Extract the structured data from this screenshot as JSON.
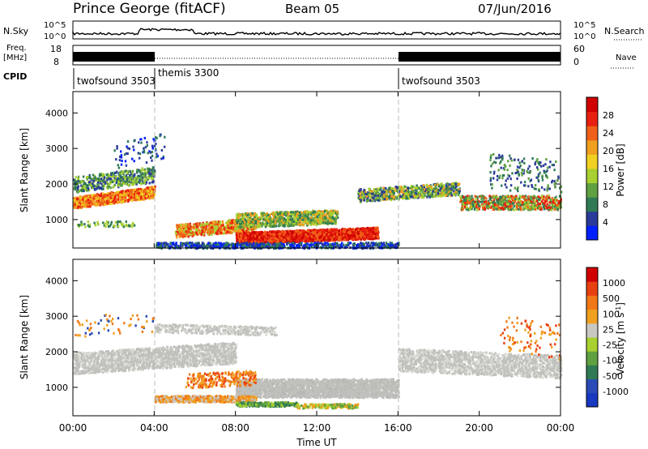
{
  "header": {
    "station": "Prince George (fitACF)",
    "beam": "Beam 05",
    "date": "07/Jun/2016"
  },
  "aux": {
    "nsky_label": "N.Sky",
    "nsearch_label": "N.Search",
    "nsky_ticks": [
      "10^5",
      "10^0"
    ],
    "nsearch_ticks": [
      "10^5",
      "10^0"
    ],
    "freq_label_1": "Freq.",
    "freq_label_2": "[MHz]",
    "freq_ticks": [
      "18",
      "8"
    ],
    "nave_label": "Nave",
    "nave_ticks": [
      "60",
      "0"
    ],
    "cpid_label": "CPID",
    "cpid_segments": [
      {
        "label": "twofsound 3503",
        "start_hour": 0
      },
      {
        "label": "themis 3300",
        "start_hour": 4
      },
      {
        "label": "twofsound 3503",
        "start_hour": 16
      }
    ]
  },
  "chart_data": [
    {
      "type": "heatmap",
      "name": "power",
      "ylabel": "Slant Range [km]",
      "ylim": [
        200,
        4600
      ],
      "yticks": [
        1000,
        2000,
        3000,
        4000
      ],
      "xlim": [
        0,
        24
      ],
      "colorbar_label": "Power [dB]",
      "colorbar_ticks": [
        "4",
        "8",
        "12",
        "16",
        "20",
        "24",
        "28"
      ],
      "colorbar_colors": [
        "#0020ff",
        "#2a3a9a",
        "#2f7a55",
        "#5fa040",
        "#a8d030",
        "#f0d020",
        "#f0a020",
        "#f06018",
        "#e82010",
        "#d00000"
      ]
    },
    {
      "type": "heatmap",
      "name": "velocity",
      "ylabel": "Slant Range [km]",
      "ylim": [
        200,
        4600
      ],
      "yticks": [
        1000,
        2000,
        3000,
        4000
      ],
      "xlim": [
        0,
        24
      ],
      "xlabel": "Time UT",
      "xticks": [
        "00:00",
        "04:00",
        "08:00",
        "12:00",
        "16:00",
        "20:00",
        "00:00"
      ],
      "colorbar_label": "Velocity [m s",
      "colorbar_label_sup": "-1",
      "colorbar_label_end": "]",
      "colorbar_ticks": [
        "1000",
        "500",
        "100",
        "25",
        "-25",
        "-100",
        "-500",
        "-1000"
      ],
      "colorbar_colors": [
        "#1838c0",
        "#2a4ab8",
        "#2f7a55",
        "#5fa040",
        "#a8d030",
        "#c8c8c0",
        "#f0a020",
        "#f07818",
        "#e84010",
        "#d00000"
      ],
      "ground_scatter_color": "#c0c0bc"
    }
  ]
}
